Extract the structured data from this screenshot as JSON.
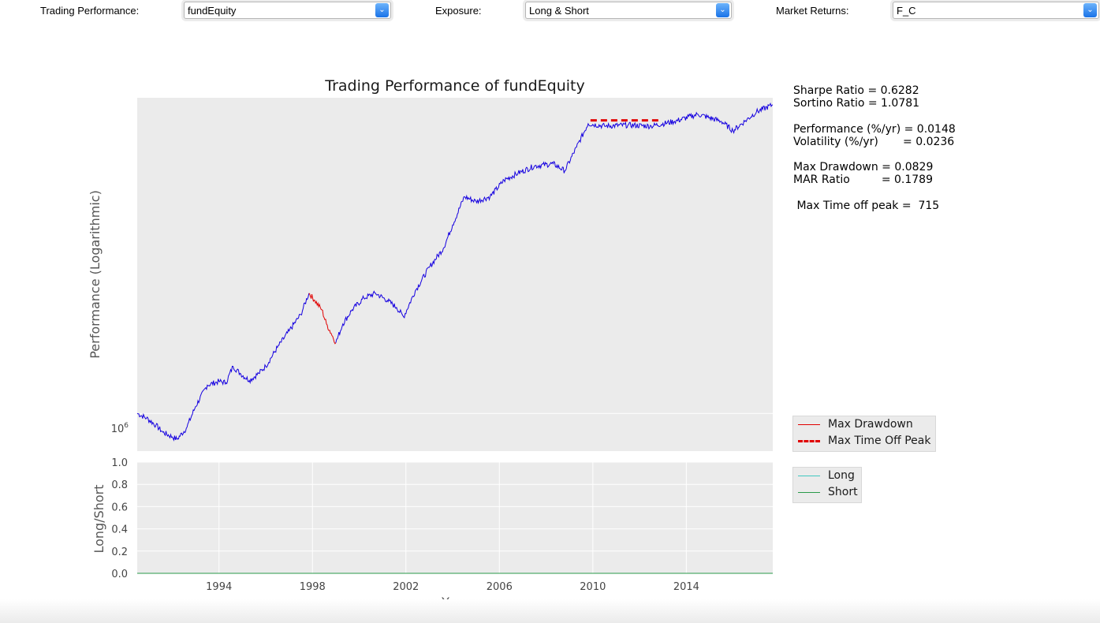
{
  "controls": {
    "trading": {
      "label": "Trading Performance:",
      "value": "fundEquity"
    },
    "exposure": {
      "label": "Exposure:",
      "value": "Long & Short"
    },
    "market": {
      "label": "Market Returns:",
      "value": "F_C"
    }
  },
  "stats": {
    "sharpe": "Sharpe Ratio = 0.6282",
    "sortino": "Sortino Ratio = 1.0781",
    "performance": "Performance (%/yr) = 0.0148",
    "volatility": "Volatility (%/yr)       = 0.0236",
    "max_drawdown": "Max Drawdown = 0.0829",
    "mar": "MAR Ratio         = 0.1789",
    "time_off_peak": " Max Time off peak =  715"
  },
  "legend_top": {
    "drawdown": {
      "label": "Max Drawdown",
      "color": "#e00000"
    },
    "time_off_peak": {
      "label": "Max Time Off Peak",
      "color": "#e00000"
    }
  },
  "legend_bottom": {
    "long": {
      "label": "Long",
      "color": "#40c8c0"
    },
    "short": {
      "label": "Short",
      "color": "#2a9a4a"
    }
  },
  "colors": {
    "equity": "#1500e0",
    "drawdown": "#e00000",
    "panel_bg": "#ebebeb",
    "grid": "#ffffff"
  },
  "chart_data": [
    {
      "type": "line",
      "title": "Trading Performance of fundEquity",
      "ylabel": "Performance (Logarithmic)",
      "xlabel": "",
      "y_scale": "log",
      "y_ticks": [
        {
          "value": 1000000,
          "label": "10",
          "exp": "6"
        }
      ],
      "xlim": [
        1990.5,
        2017.7
      ],
      "grid": true,
      "series": [
        {
          "values": [
            [
              1990.5,
              1.0
            ],
            [
              1990.9,
              0.99
            ],
            [
              1991.3,
              0.975
            ],
            [
              1991.6,
              0.96
            ],
            [
              1992.0,
              0.95
            ],
            [
              1992.2,
              0.945
            ],
            [
              1992.6,
              0.968
            ],
            [
              1993.0,
              1.015
            ],
            [
              1993.5,
              1.06
            ],
            [
              1994.0,
              1.068
            ],
            [
              1994.3,
              1.065
            ],
            [
              1994.6,
              1.1
            ],
            [
              1994.9,
              1.085
            ],
            [
              1995.3,
              1.07
            ],
            [
              1995.7,
              1.085
            ],
            [
              1996.0,
              1.1
            ],
            [
              1996.5,
              1.14
            ],
            [
              1997.0,
              1.175
            ],
            [
              1997.5,
              1.21
            ],
            [
              1997.85,
              1.255
            ]
          ]
        },
        {
          "name": "Max Drawdown",
          "values": [
            [
              1997.85,
              1.255
            ],
            [
              1998.1,
              1.24
            ],
            [
              1998.4,
              1.22
            ],
            [
              1998.6,
              1.19
            ],
            [
              1998.8,
              1.17
            ],
            [
              1999.0,
              1.15
            ]
          ]
        },
        {
          "values": [
            [
              1999.0,
              1.15
            ],
            [
              1999.3,
              1.19
            ],
            [
              1999.7,
              1.22
            ],
            [
              2000.2,
              1.245
            ],
            [
              2000.7,
              1.255
            ],
            [
              2001.2,
              1.24
            ],
            [
              2001.6,
              1.225
            ],
            [
              2001.9,
              1.205
            ],
            [
              2002.4,
              1.26
            ],
            [
              2003.0,
              1.31
            ],
            [
              2003.6,
              1.35
            ],
            [
              2004.0,
              1.4
            ],
            [
              2004.5,
              1.46
            ],
            [
              2005.0,
              1.45
            ],
            [
              2005.6,
              1.46
            ],
            [
              2006.2,
              1.495
            ],
            [
              2006.8,
              1.51
            ],
            [
              2007.5,
              1.525
            ],
            [
              2008.3,
              1.53
            ],
            [
              2008.8,
              1.515
            ],
            [
              2009.3,
              1.565
            ],
            [
              2009.8,
              1.615
            ],
            [
              2010.5,
              1.61
            ],
            [
              2011.5,
              1.612
            ],
            [
              2012.5,
              1.61
            ],
            [
              2013.5,
              1.62
            ],
            [
              2014.5,
              1.635
            ],
            [
              2015.5,
              1.62
            ],
            [
              2016.0,
              1.6
            ],
            [
              2016.5,
              1.62
            ],
            [
              2017.0,
              1.64
            ],
            [
              2017.7,
              1.655
            ]
          ]
        },
        {
          "name": "Max Time Off Peak",
          "values": [
            [
              2009.9,
              1.622
            ],
            [
              2012.8,
              1.622
            ]
          ]
        }
      ]
    },
    {
      "type": "line",
      "ylabel": "Long/Short",
      "xlabel": "Year",
      "ylim": [
        0,
        1
      ],
      "y_ticks": [
        "0.0",
        "0.2",
        "0.4",
        "0.6",
        "0.8",
        "1.0"
      ],
      "x_ticks": [
        "1994",
        "1998",
        "2002",
        "2006",
        "2010",
        "2014"
      ],
      "xlim": [
        1990.5,
        2017.7
      ],
      "grid": true,
      "series": [
        {
          "name": "Long",
          "values": [
            [
              1990.5,
              0
            ],
            [
              2017.7,
              0
            ]
          ]
        },
        {
          "name": "Short",
          "values": [
            [
              1990.5,
              0
            ],
            [
              2017.7,
              0
            ]
          ]
        }
      ]
    }
  ]
}
